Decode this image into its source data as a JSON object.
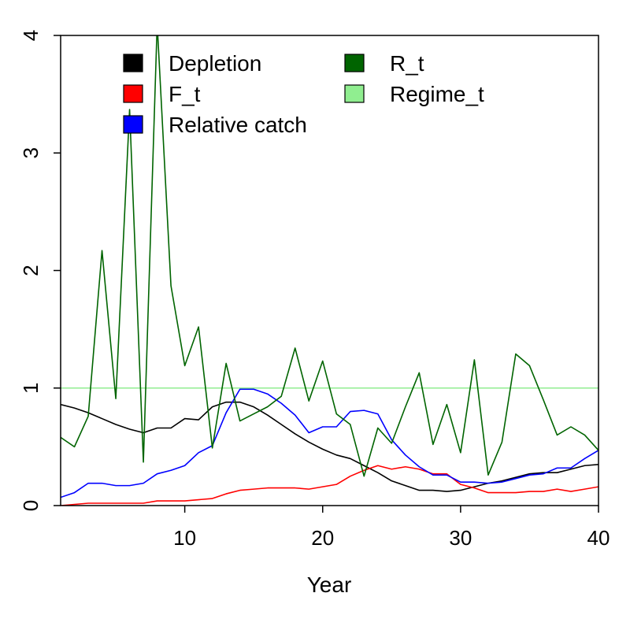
{
  "chart_data": {
    "type": "line",
    "title": "",
    "xlabel": "Year",
    "ylabel": "",
    "xlim": [
      1,
      40
    ],
    "ylim": [
      0,
      4
    ],
    "x_ticks": [
      10,
      20,
      30,
      40
    ],
    "y_ticks": [
      0,
      1,
      2,
      3,
      4
    ],
    "grid": false,
    "legend_position": "top",
    "x": [
      1,
      2,
      3,
      4,
      5,
      6,
      7,
      8,
      9,
      10,
      11,
      12,
      13,
      14,
      15,
      16,
      17,
      18,
      19,
      20,
      21,
      22,
      23,
      24,
      25,
      26,
      27,
      28,
      29,
      30,
      31,
      32,
      33,
      34,
      35,
      36,
      37,
      38,
      39,
      40
    ],
    "series": [
      {
        "name": "Depletion",
        "color": "#000000",
        "values": [
          0.86,
          0.83,
          0.79,
          0.74,
          0.69,
          0.65,
          0.62,
          0.66,
          0.66,
          0.74,
          0.73,
          0.84,
          0.88,
          0.88,
          0.84,
          0.77,
          0.69,
          0.61,
          0.54,
          0.48,
          0.43,
          0.4,
          0.34,
          0.28,
          0.21,
          0.17,
          0.13,
          0.13,
          0.12,
          0.13,
          0.16,
          0.19,
          0.21,
          0.24,
          0.27,
          0.28,
          0.28,
          0.31,
          0.34,
          0.35
        ]
      },
      {
        "name": "F_t",
        "color": "#ff0000",
        "values": [
          0.0,
          0.01,
          0.02,
          0.02,
          0.02,
          0.02,
          0.02,
          0.04,
          0.04,
          0.04,
          0.05,
          0.06,
          0.1,
          0.13,
          0.14,
          0.15,
          0.15,
          0.15,
          0.14,
          0.16,
          0.18,
          0.25,
          0.3,
          0.34,
          0.31,
          0.33,
          0.31,
          0.27,
          0.27,
          0.18,
          0.15,
          0.11,
          0.11,
          0.11,
          0.12,
          0.12,
          0.14,
          0.12,
          0.14,
          0.16
        ]
      },
      {
        "name": "Relative catch",
        "color": "#0000ff",
        "values": [
          0.07,
          0.11,
          0.19,
          0.19,
          0.17,
          0.17,
          0.19,
          0.27,
          0.3,
          0.34,
          0.45,
          0.51,
          0.79,
          0.99,
          0.99,
          0.95,
          0.87,
          0.77,
          0.62,
          0.67,
          0.67,
          0.8,
          0.81,
          0.78,
          0.56,
          0.43,
          0.33,
          0.26,
          0.26,
          0.2,
          0.2,
          0.19,
          0.2,
          0.23,
          0.26,
          0.27,
          0.32,
          0.32,
          0.4,
          0.47
        ]
      },
      {
        "name": "R_t",
        "color": "#006400",
        "values": [
          0.58,
          0.5,
          0.76,
          2.17,
          0.91,
          3.37,
          0.37,
          4.1,
          1.87,
          1.19,
          1.52,
          0.49,
          1.21,
          0.72,
          0.78,
          0.84,
          0.93,
          1.34,
          0.89,
          1.23,
          0.78,
          0.69,
          0.25,
          0.66,
          0.53,
          0.84,
          1.13,
          0.52,
          0.86,
          0.45,
          1.24,
          0.26,
          0.54,
          1.29,
          1.19,
          0.9,
          0.6,
          0.67,
          0.6,
          0.47
        ]
      },
      {
        "name": "Regime_t",
        "color": "#90ee90",
        "values": [
          1,
          1,
          1,
          1,
          1,
          1,
          1,
          1,
          1,
          1,
          1,
          1,
          1,
          1,
          1,
          1,
          1,
          1,
          1,
          1,
          1,
          1,
          1,
          1,
          1,
          1,
          1,
          1,
          1,
          1,
          1,
          1,
          1,
          1,
          1,
          1,
          1,
          1,
          1,
          1
        ]
      }
    ]
  }
}
